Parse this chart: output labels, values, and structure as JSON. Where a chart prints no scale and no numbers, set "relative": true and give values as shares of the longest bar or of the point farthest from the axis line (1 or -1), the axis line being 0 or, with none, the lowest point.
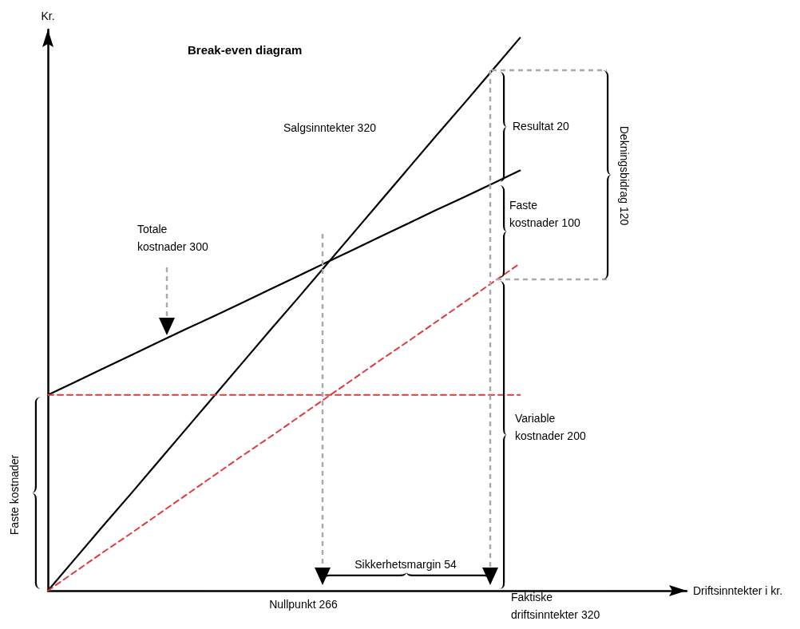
{
  "chart_data": {
    "type": "line",
    "title": "Break-even diagram",
    "xlabel": "Driftsinntekter i kr.",
    "ylabel": "Kr.",
    "relative": true,
    "grid": false,
    "marker": "none",
    "categories": [
      null,
      null,
      null,
      null,
      null,
      null,
      null,
      null,
      null,
      null,
      null,
      null,
      null,
      null,
      null,
      null,
      null,
      null,
      null,
      null,
      null,
      null,
      null,
      null
    ],
    "series": [
      {
        "color": "#000000",
        "line_style": "solid",
        "values": [
          0,
          0.059,
          0.118,
          0.176,
          0.235,
          0.294,
          0.353,
          0.412,
          0.471,
          0.529,
          0.588,
          0.647,
          0.706,
          0.765,
          0.824,
          0.882,
          0.941,
          1,
          null,
          null,
          null,
          null,
          null,
          null
        ]
      },
      {
        "color": "#000000",
        "line_style": "solid",
        "values": [
          0.354,
          0.378,
          0.402,
          0.426,
          0.45,
          0.474,
          0.497,
          0.521,
          0.545,
          0.569,
          0.593,
          0.617,
          0.641,
          0.665,
          0.689,
          0.712,
          0.736,
          0.76,
          null,
          null,
          null,
          null,
          null,
          null
        ]
      },
      {
        "color": "#e0393e",
        "line_style": "dashed",
        "values": [
          0.354,
          0.354,
          0.354,
          0.354,
          0.354,
          0.354,
          0.354,
          0.354,
          0.354,
          0.354,
          0.354,
          0.354,
          0.354,
          0.354,
          0.354,
          0.354,
          0.354,
          0.354,
          null,
          null,
          null,
          null,
          null,
          null
        ]
      },
      {
        "color": "#e0393e",
        "line_style": "dashed",
        "values": [
          0,
          0.035,
          0.07,
          0.104,
          0.139,
          0.174,
          0.209,
          0.244,
          0.278,
          0.313,
          0.348,
          0.383,
          0.418,
          0.452,
          0.487,
          0.522,
          0.557,
          0.592,
          null,
          null,
          null,
          null,
          null,
          null
        ]
      }
    ],
    "annotations": [
      "Salgsinntekter 320",
      "Totale kostnader 300",
      "Resultat 20",
      "Faste kostnader 100",
      "Dekningsbidrag 120",
      "Variable kostnader 200",
      "Faste kostnader",
      "Sikkerhetsmargin 54",
      "Nullpunkt 266",
      "Faktiske driftsinntekter 320"
    ]
  }
}
